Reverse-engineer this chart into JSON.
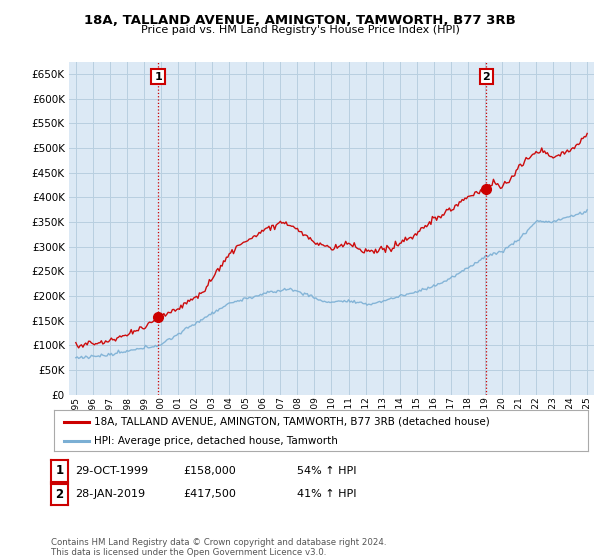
{
  "title": "18A, TALLAND AVENUE, AMINGTON, TAMWORTH, B77 3RB",
  "subtitle": "Price paid vs. HM Land Registry's House Price Index (HPI)",
  "ylim": [
    0,
    675000
  ],
  "yticks": [
    0,
    50000,
    100000,
    150000,
    200000,
    250000,
    300000,
    350000,
    400000,
    450000,
    500000,
    550000,
    600000,
    650000
  ],
  "x_start_year": 1995,
  "x_end_year": 2025,
  "purchase1_date": 1999.83,
  "purchase1_price": 158000,
  "purchase2_date": 2019.08,
  "purchase2_price": 417500,
  "purchase1_label": "1",
  "purchase2_label": "2",
  "line_color_property": "#cc0000",
  "line_color_hpi": "#7bafd4",
  "vline_color": "#cc0000",
  "annotation_box_color": "#cc0000",
  "plot_bg_color": "#dce9f5",
  "legend_label_property": "18A, TALLAND AVENUE, AMINGTON, TAMWORTH, B77 3RB (detached house)",
  "legend_label_hpi": "HPI: Average price, detached house, Tamworth",
  "table_row1": [
    "1",
    "29-OCT-1999",
    "£158,000",
    "54% ↑ HPI"
  ],
  "table_row2": [
    "2",
    "28-JAN-2019",
    "£417,500",
    "41% ↑ HPI"
  ],
  "footer": "Contains HM Land Registry data © Crown copyright and database right 2024.\nThis data is licensed under the Open Government Licence v3.0.",
  "bg_color": "#ffffff",
  "grid_color": "#b8cfe0"
}
